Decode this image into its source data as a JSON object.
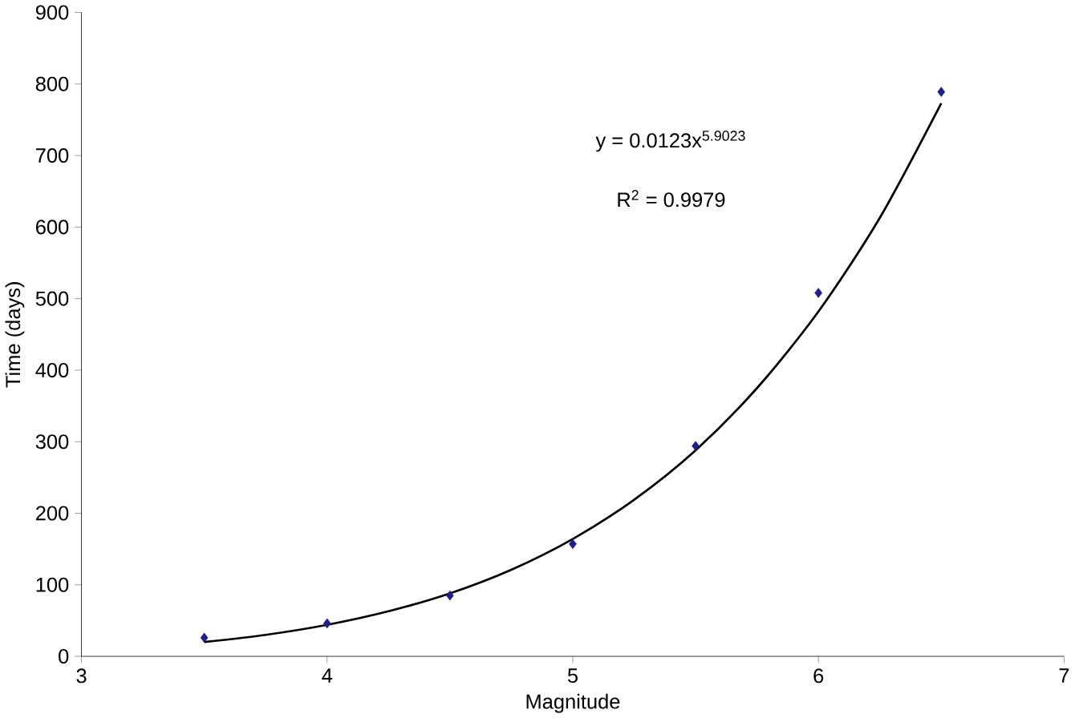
{
  "chart_data": {
    "type": "scatter",
    "xlabel": "Magnitude",
    "ylabel": "Time (days)",
    "xlim": [
      3,
      7
    ],
    "xticks": [
      3,
      4,
      5,
      6,
      7
    ],
    "ylim": [
      0,
      900
    ],
    "yticks": [
      0,
      100,
      200,
      300,
      400,
      500,
      600,
      700,
      800,
      900
    ],
    "grid": false,
    "annotations": [
      "y = 0.0123x$^{5.9023}$",
      "R$^{2}$ = 0.9979"
    ],
    "series": [
      {
        "marker": "diamond",
        "color": "#1f1f8c",
        "x": [
          3.5,
          4,
          4.5,
          5,
          5.5,
          6,
          6.5
        ],
        "values": [
          26,
          46,
          85,
          157,
          294,
          508,
          789
        ]
      },
      {
        "type": "line",
        "marker": "none",
        "color": "#000000",
        "x": [
          3.5,
          3.75,
          4,
          4.25,
          4.5,
          4.75,
          5,
          5.25,
          5.5,
          5.75,
          6,
          6.25,
          6.5
        ],
        "values": [
          20,
          30,
          44,
          63,
          88,
          121,
          164,
          219,
          288,
          375,
          482,
          613,
          773
        ]
      }
    ]
  }
}
